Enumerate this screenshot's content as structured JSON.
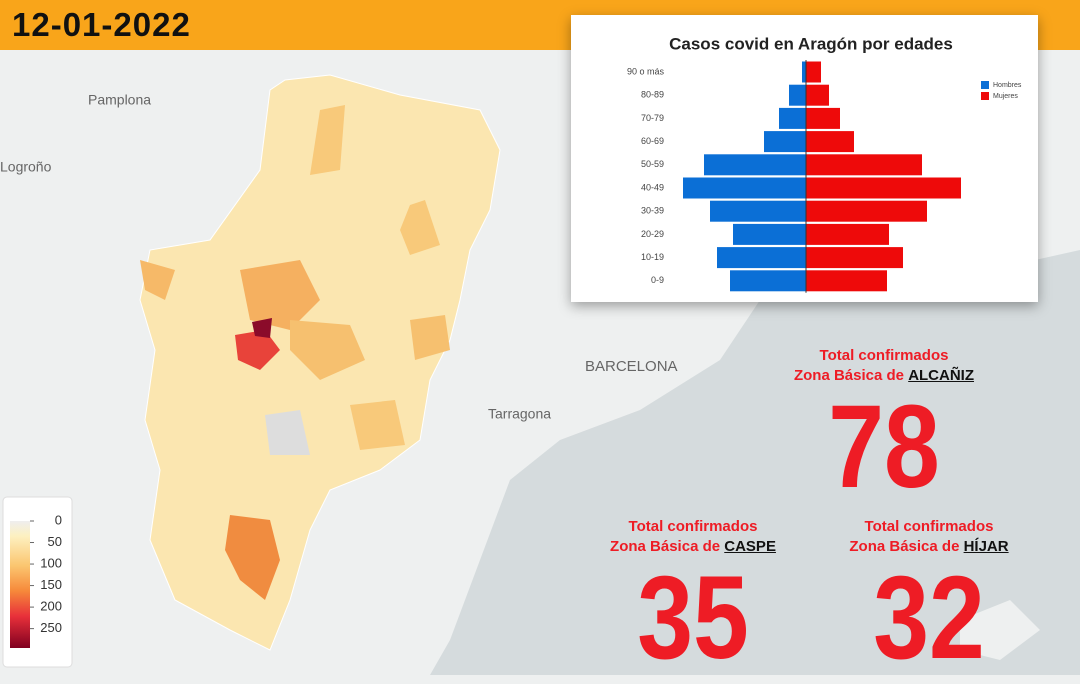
{
  "header": {
    "date": "12-01-2022"
  },
  "map": {
    "labels": [
      "Pamplona",
      "Logroño",
      "BARCELONA",
      "Tarragona"
    ],
    "colorbar": {
      "lim": [
        0,
        295
      ],
      "ticks": [
        0,
        50,
        100,
        150,
        200,
        250
      ]
    }
  },
  "chart_data": {
    "type": "bar",
    "title": "Casos covid en Aragón por edades",
    "categories": [
      "0-9",
      "10-19",
      "20-29",
      "30-39",
      "40-49",
      "50-59",
      "60-69",
      "70-79",
      "80-89",
      "90 o más"
    ],
    "series": [
      {
        "name": "Hombres",
        "color": "#0b6fd6",
        "values": [
          76,
          89,
          73,
          96,
          123,
          102,
          42,
          27,
          17,
          4
        ]
      },
      {
        "name": "Mujeres",
        "color": "#ee0a0a",
        "values": [
          81,
          97,
          83,
          121,
          155,
          116,
          48,
          34,
          23,
          15
        ]
      }
    ]
  },
  "totals": [
    {
      "line1": "Total confirmados",
      "line2": "Zona Básica de",
      "zone": "ALCAÑIZ",
      "value": 78
    },
    {
      "line1": "Total confirmados",
      "line2": "Zona Básica de",
      "zone": "CASPE",
      "value": 35
    },
    {
      "line1": "Total confirmados",
      "line2": "Zona Básica de",
      "zone": "HÍJAR",
      "value": 32
    }
  ]
}
